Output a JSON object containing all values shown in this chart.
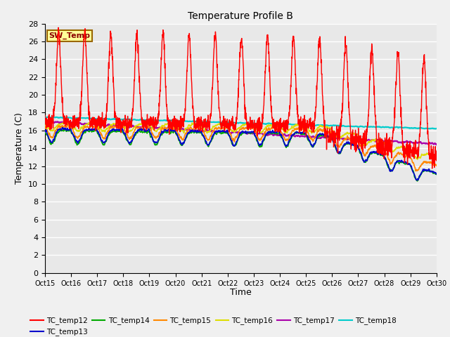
{
  "title": "Temperature Profile B",
  "xlabel": "Time",
  "ylabel": "Temperature (C)",
  "ylim": [
    0,
    28
  ],
  "xlim": [
    0,
    15
  ],
  "xtick_labels": [
    "Oct 15",
    "Oct 16",
    "Oct 17",
    "Oct 18",
    "Oct 19",
    "Oct 20",
    "Oct 21",
    "Oct 22",
    "Oct 23",
    "Oct 24",
    "Oct 25",
    "Oct 26",
    "Oct 27",
    "Oct 28",
    "Oct 29",
    "Oct 30"
  ],
  "bg_color": "#e8e8e8",
  "series_colors": {
    "TC_temp12": "#ff0000",
    "TC_temp13": "#0000cc",
    "TC_temp14": "#00aa00",
    "TC_temp15": "#ff8800",
    "TC_temp16": "#dddd00",
    "TC_temp17": "#aa00aa",
    "TC_temp18": "#00cccc"
  },
  "sw_temp_label": "SW_Temp",
  "sw_temp_border": "#996600"
}
